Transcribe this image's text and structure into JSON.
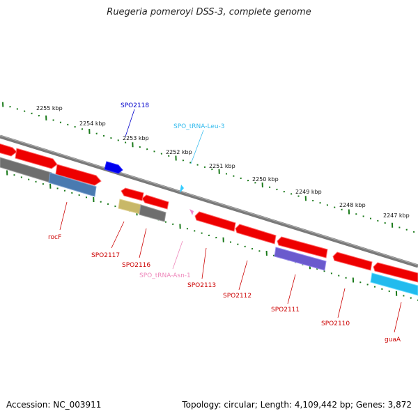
{
  "title": "Ruegeria pomeroyi DSS-3, complete genome",
  "footer": {
    "accession": "Accession: NC_003911",
    "topology": "Topology: circular; Length: 4,109,442 bp; Genes: 3,872"
  },
  "kbp_ticks": [
    "2255 kbp",
    "2254 kbp",
    "2253 kbp",
    "2252 kbp",
    "2251 kbp",
    "2250 kbp",
    "2249 kbp",
    "2248 kbp",
    "2247 kbp"
  ],
  "gene_labels": [
    {
      "label": "SPO2118",
      "color": "#0000cc"
    },
    {
      "label": "SPO_tRNA-Leu-3",
      "color": "#33bbee"
    },
    {
      "label": "rocF",
      "color": "#cc0000"
    },
    {
      "label": "SPO2117",
      "color": "#cc0000"
    },
    {
      "label": "SPO2116",
      "color": "#cc0000"
    },
    {
      "label": "SPO_tRNA-Asn-1",
      "color": "#ee88bb"
    },
    {
      "label": "SPO2113",
      "color": "#cc0000"
    },
    {
      "label": "SPO2112",
      "color": "#cc0000"
    },
    {
      "label": "SPO2111",
      "color": "#cc0000"
    },
    {
      "label": "SPO2110",
      "color": "#cc0000"
    },
    {
      "label": "guaA",
      "color": "#cc0000"
    }
  ],
  "colors": {
    "cds": "#ff0000",
    "trna": "#33ccff",
    "backbone": "#888888",
    "tick_green": "#1a7a1a",
    "gene_blue": "#0000ee",
    "gene_grey": "#777777",
    "gene_khaki": "#c8b868",
    "gene_steel": "#4a7ab0",
    "gene_violet": "#6a5acd",
    "gene_cyan": "#22bbee",
    "trna_pink": "#ee88cc"
  }
}
